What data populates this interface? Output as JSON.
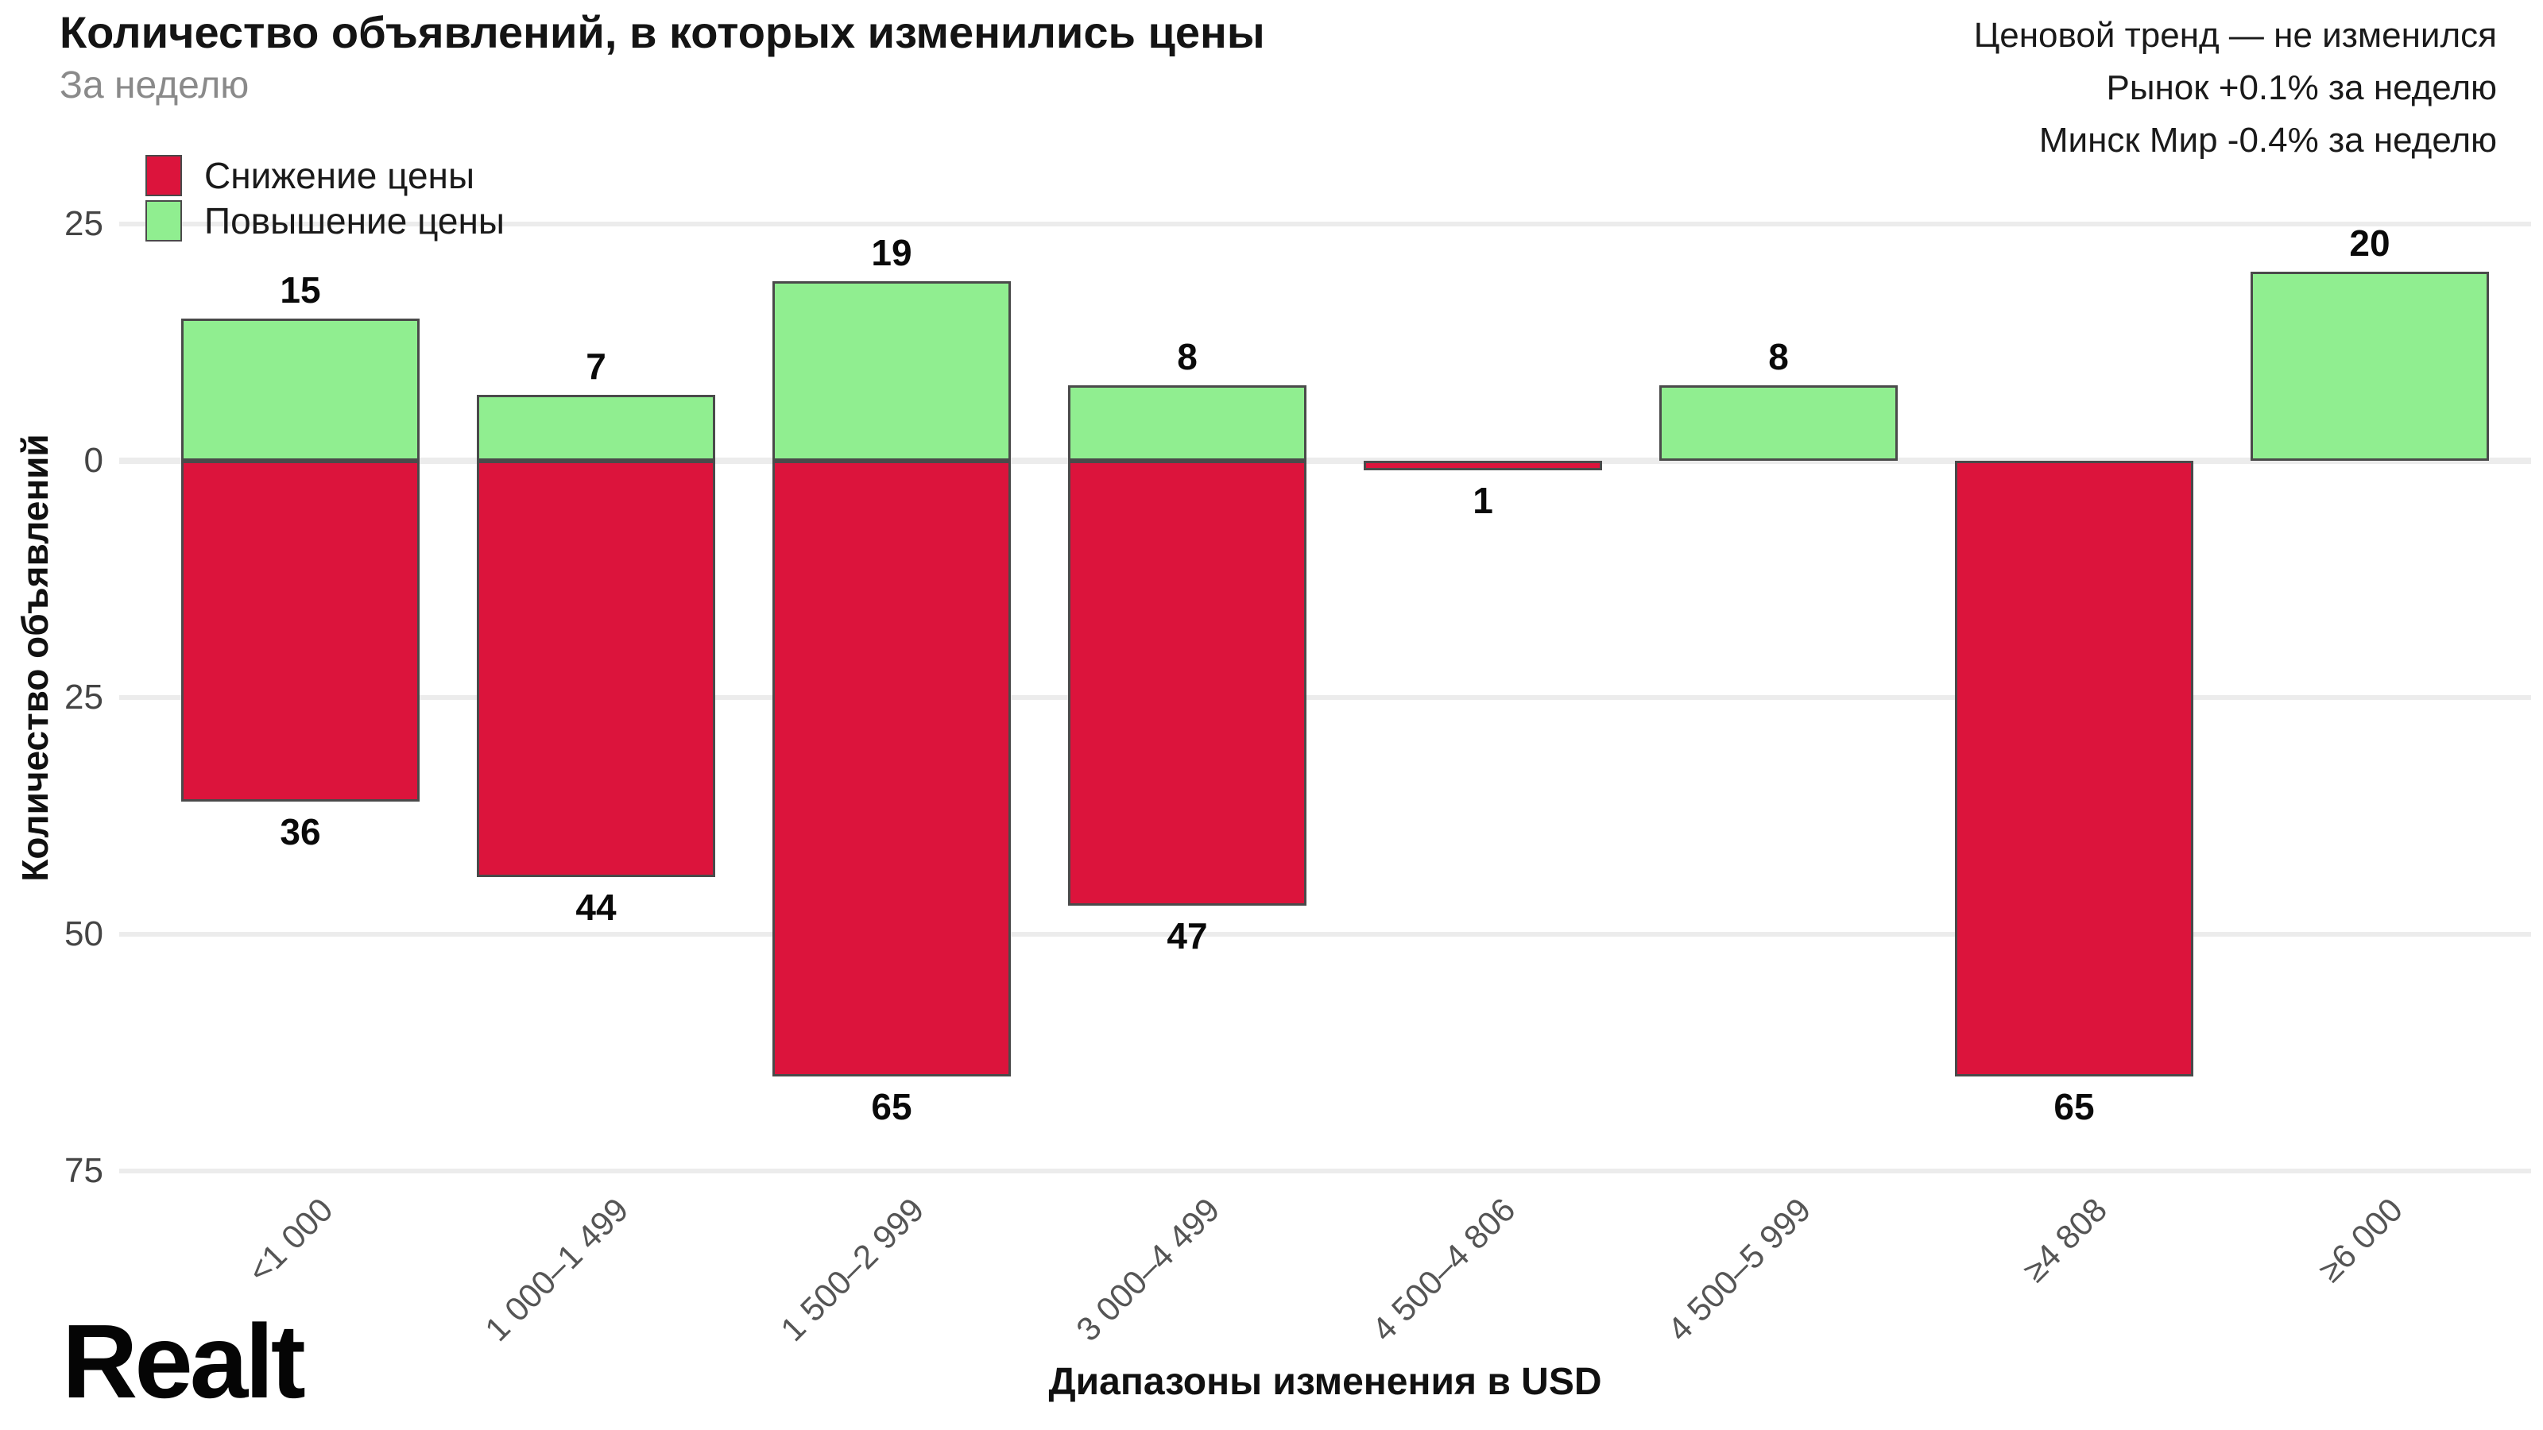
{
  "header": {
    "title": "Количество объявлений, в которых изменились цены",
    "subtitle": "За неделю",
    "trend_lines": [
      "Ценовой тренд — не изменился",
      "Рынок +0.1% за неделю",
      "Минск Мир -0.4% за неделю"
    ]
  },
  "logo": {
    "text": "Realt"
  },
  "chart_data": {
    "type": "bar",
    "title": "Количество объявлений, в которых изменились цены",
    "subtitle": "За неделю",
    "xlabel": "Диапазоны изменения в USD",
    "ylabel": "Количество объявлений",
    "categories": [
      "<1 000",
      "1 000–1 499",
      "1 500–2 999",
      "3 000–4 499",
      "4 500–4 806",
      "4 500–5 999",
      "≥4 808",
      "≥6 000"
    ],
    "series": [
      {
        "name": "Снижение цены",
        "color": "#DC143C",
        "direction": "down",
        "values": [
          36,
          44,
          65,
          47,
          1,
          null,
          65,
          null
        ]
      },
      {
        "name": "Повышение цены",
        "color": "#90EE90",
        "direction": "up",
        "values": [
          15,
          7,
          19,
          8,
          null,
          8,
          null,
          20
        ]
      }
    ],
    "yticks": [
      25,
      0,
      -25,
      -50,
      -75
    ],
    "ytick_labels_absolute": true,
    "ylim": [
      -75,
      25
    ],
    "grid": true,
    "legend_position": "top-left",
    "value_labels": true,
    "colors": {
      "decrease": "#DC143C",
      "increase": "#90EE90",
      "bar_border": "#4A4A4A",
      "gridline": "#ECECEC"
    }
  }
}
